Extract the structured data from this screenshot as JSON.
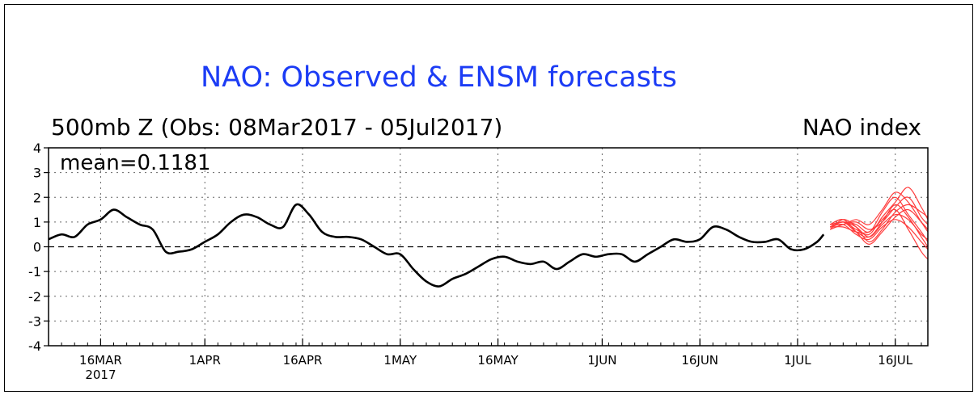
{
  "chart_data": {
    "type": "line",
    "title": "NAO: Observed & ENSM forecasts",
    "subtitle": "500mb Z (Obs: 08Mar2017 - 05Jul2017)",
    "ylabel": "NAO index",
    "annotation": "mean=0.1181",
    "ylim": [
      -4,
      4
    ],
    "yticks": [
      "4",
      "3",
      "2",
      "1",
      "0",
      "-1",
      "-2",
      "-3",
      "-4"
    ],
    "xlim": [
      "2017-03-08",
      "2017-07-21"
    ],
    "xticks": [
      {
        "date": "2017-03-16",
        "label": "16MAR",
        "sublabel": "2017"
      },
      {
        "date": "2017-04-01",
        "label": "1APR",
        "sublabel": ""
      },
      {
        "date": "2017-04-16",
        "label": "16APR",
        "sublabel": ""
      },
      {
        "date": "2017-05-01",
        "label": "1MAY",
        "sublabel": ""
      },
      {
        "date": "2017-05-16",
        "label": "16MAY",
        "sublabel": ""
      },
      {
        "date": "2017-06-01",
        "label": "1JUN",
        "sublabel": ""
      },
      {
        "date": "2017-06-16",
        "label": "16JUN",
        "sublabel": ""
      },
      {
        "date": "2017-07-01",
        "label": "1JUL",
        "sublabel": ""
      },
      {
        "date": "2017-07-16",
        "label": "16JUL",
        "sublabel": ""
      }
    ],
    "grid": true,
    "zero_line": "dashed",
    "colors": {
      "observed": "#000000",
      "forecast": "#ff3b3b",
      "title": "#1c3cf5"
    },
    "observed": {
      "x": [
        "2017-03-08",
        "2017-03-10",
        "2017-03-12",
        "2017-03-14",
        "2017-03-16",
        "2017-03-18",
        "2017-03-20",
        "2017-03-22",
        "2017-03-24",
        "2017-03-26",
        "2017-03-28",
        "2017-03-30",
        "2017-04-01",
        "2017-04-03",
        "2017-04-05",
        "2017-04-07",
        "2017-04-09",
        "2017-04-11",
        "2017-04-13",
        "2017-04-15",
        "2017-04-17",
        "2017-04-19",
        "2017-04-21",
        "2017-04-23",
        "2017-04-25",
        "2017-04-27",
        "2017-04-29",
        "2017-05-01",
        "2017-05-03",
        "2017-05-05",
        "2017-05-07",
        "2017-05-09",
        "2017-05-11",
        "2017-05-13",
        "2017-05-15",
        "2017-05-17",
        "2017-05-19",
        "2017-05-21",
        "2017-05-23",
        "2017-05-25",
        "2017-05-27",
        "2017-05-29",
        "2017-05-31",
        "2017-06-02",
        "2017-06-04",
        "2017-06-06",
        "2017-06-08",
        "2017-06-10",
        "2017-06-12",
        "2017-06-14",
        "2017-06-16",
        "2017-06-18",
        "2017-06-20",
        "2017-06-22",
        "2017-06-24",
        "2017-06-26",
        "2017-06-28",
        "2017-06-30",
        "2017-07-02",
        "2017-07-04",
        "2017-07-05"
      ],
      "y": [
        0.3,
        0.5,
        0.4,
        0.9,
        1.1,
        1.5,
        1.2,
        0.9,
        0.7,
        -0.2,
        -0.2,
        -0.1,
        0.2,
        0.5,
        1.0,
        1.3,
        1.2,
        0.9,
        0.8,
        1.7,
        1.3,
        0.6,
        0.4,
        0.4,
        0.3,
        0.0,
        -0.3,
        -0.3,
        -0.9,
        -1.4,
        -1.6,
        -1.3,
        -1.1,
        -0.8,
        -0.5,
        -0.4,
        -0.6,
        -0.7,
        -0.6,
        -0.9,
        -0.6,
        -0.3,
        -0.4,
        -0.3,
        -0.3,
        -0.6,
        -0.3,
        0.0,
        0.3,
        0.2,
        0.3,
        0.8,
        0.7,
        0.4,
        0.2,
        0.2,
        0.3,
        -0.1,
        -0.1,
        0.2,
        0.5
      ]
    },
    "forecasts": [
      {
        "x": [
          "2017-07-06",
          "2017-07-08",
          "2017-07-10",
          "2017-07-12",
          "2017-07-14",
          "2017-07-16",
          "2017-07-18",
          "2017-07-20",
          "2017-07-21"
        ],
        "y": [
          0.8,
          1.0,
          0.8,
          0.4,
          0.9,
          1.3,
          1.1,
          0.5,
          0.3
        ]
      },
      {
        "x": [
          "2017-07-06",
          "2017-07-08",
          "2017-07-10",
          "2017-07-12",
          "2017-07-14",
          "2017-07-16",
          "2017-07-18",
          "2017-07-20",
          "2017-07-21"
        ],
        "y": [
          0.9,
          1.1,
          0.6,
          0.1,
          0.6,
          1.2,
          1.5,
          1.0,
          0.7
        ]
      },
      {
        "x": [
          "2017-07-06",
          "2017-07-08",
          "2017-07-10",
          "2017-07-12",
          "2017-07-14",
          "2017-07-16",
          "2017-07-18",
          "2017-07-20",
          "2017-07-21"
        ],
        "y": [
          0.7,
          0.9,
          1.0,
          0.7,
          1.0,
          1.6,
          2.0,
          1.2,
          0.9
        ]
      },
      {
        "x": [
          "2017-07-06",
          "2017-07-08",
          "2017-07-10",
          "2017-07-12",
          "2017-07-14",
          "2017-07-16",
          "2017-07-18",
          "2017-07-20",
          "2017-07-21"
        ],
        "y": [
          0.8,
          1.0,
          0.7,
          0.5,
          1.2,
          1.8,
          2.4,
          1.6,
          1.1
        ]
      },
      {
        "x": [
          "2017-07-06",
          "2017-07-08",
          "2017-07-10",
          "2017-07-12",
          "2017-07-14",
          "2017-07-16",
          "2017-07-18",
          "2017-07-20",
          "2017-07-21"
        ],
        "y": [
          0.8,
          0.9,
          0.5,
          0.3,
          0.8,
          1.1,
          0.8,
          0.2,
          -0.1
        ]
      },
      {
        "x": [
          "2017-07-06",
          "2017-07-08",
          "2017-07-10",
          "2017-07-12",
          "2017-07-14",
          "2017-07-16",
          "2017-07-18",
          "2017-07-20",
          "2017-07-21"
        ],
        "y": [
          0.9,
          1.0,
          0.9,
          0.6,
          1.4,
          2.0,
          1.3,
          0.6,
          0.2
        ]
      },
      {
        "x": [
          "2017-07-06",
          "2017-07-08",
          "2017-07-10",
          "2017-07-12",
          "2017-07-14",
          "2017-07-16",
          "2017-07-18",
          "2017-07-20",
          "2017-07-21"
        ],
        "y": [
          0.8,
          0.8,
          0.6,
          0.6,
          1.1,
          1.5,
          0.7,
          -0.2,
          -0.5
        ]
      },
      {
        "x": [
          "2017-07-06",
          "2017-07-08",
          "2017-07-10",
          "2017-07-12",
          "2017-07-14",
          "2017-07-16",
          "2017-07-18",
          "2017-07-20",
          "2017-07-21"
        ],
        "y": [
          0.7,
          1.1,
          0.8,
          0.2,
          0.7,
          1.4,
          1.7,
          1.4,
          1.2
        ]
      },
      {
        "x": [
          "2017-07-06",
          "2017-07-08",
          "2017-07-10",
          "2017-07-12",
          "2017-07-14",
          "2017-07-16",
          "2017-07-18",
          "2017-07-20",
          "2017-07-21"
        ],
        "y": [
          0.9,
          0.9,
          1.1,
          0.9,
          1.5,
          2.2,
          1.8,
          1.0,
          0.6
        ]
      },
      {
        "x": [
          "2017-07-06",
          "2017-07-08",
          "2017-07-10",
          "2017-07-12",
          "2017-07-14",
          "2017-07-16",
          "2017-07-18",
          "2017-07-20",
          "2017-07-21"
        ],
        "y": [
          0.8,
          1.0,
          0.6,
          0.4,
          1.0,
          1.7,
          1.2,
          0.4,
          0.0
        ]
      }
    ]
  }
}
